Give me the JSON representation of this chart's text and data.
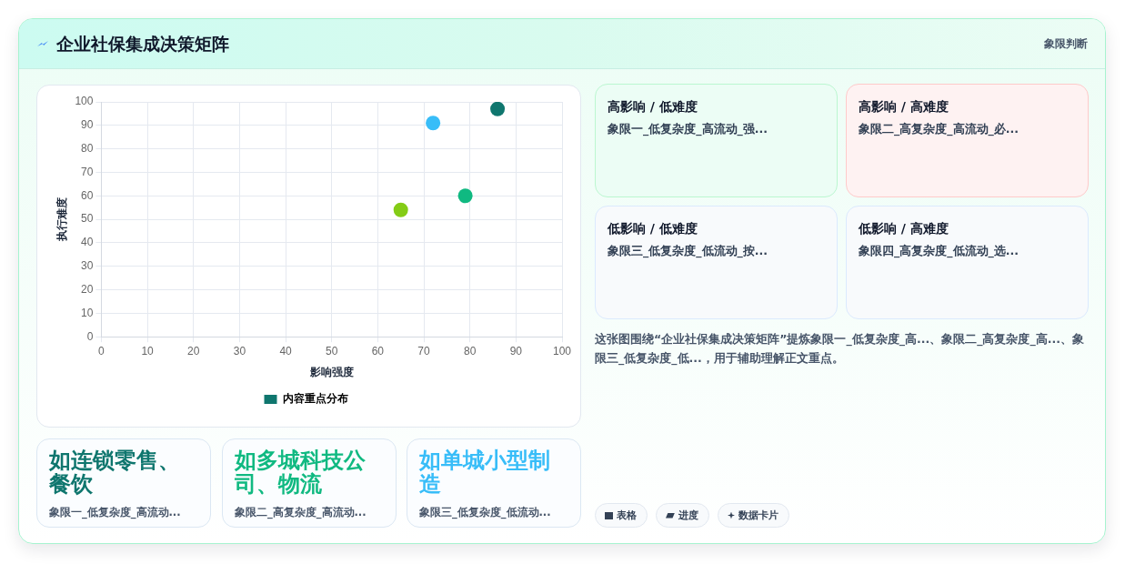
{
  "chart_data": [
    {
      "type": "other",
      "title": "企业社保集成决策矩阵",
      "subtitle": "象限判断"
    },
    {
      "type": "scatter",
      "xlabel": "影响强度",
      "ylabel": "执行难度",
      "xlim": [
        0,
        100
      ],
      "ylim": [
        0,
        100
      ],
      "xticks": [
        0,
        10,
        20,
        30,
        40,
        50,
        60,
        70,
        80,
        90,
        100
      ],
      "yticks": [
        0,
        10,
        20,
        30,
        40,
        50,
        60,
        70,
        80,
        90,
        100
      ],
      "grid": true,
      "legend": "bottom",
      "marker": "circle",
      "series": [
        {
          "name": "内容重点分布",
          "color": "#0f766e",
          "colors": [
            "#0f766e",
            "#10b981",
            "#38bdf8",
            "#84cc16"
          ],
          "x": [
            86,
            79,
            72,
            65
          ],
          "values": [
            97,
            60,
            91,
            54
          ]
        }
      ]
    },
    {
      "type": "other",
      "title": "高影响 / 低难度",
      "subtitle": "象限一_低复杂度_高流动_强..."
    },
    {
      "type": "other",
      "title": "高影响 / 高难度",
      "subtitle": "象限二_高复杂度_高流动_必..."
    },
    {
      "type": "other",
      "title": "低影响 / 低难度",
      "subtitle": "象限三_低复杂度_低流动_按..."
    },
    {
      "type": "other",
      "title": "低影响 / 高难度",
      "subtitle": "象限四_高复杂度_低流动_选..."
    },
    {
      "type": "other",
      "annotations": [
        "这张图围绕“企业社保集成决策矩阵”提炼象限一_低复杂度_高...、象限二_高复杂度_高...、象限三_低复杂度_低...，用于辅助理解正文重点。"
      ]
    },
    {
      "type": "other",
      "title": "如连锁零售、餐饮",
      "subtitle": "象限一_低复杂度_高流动...",
      "color": "#0f766e"
    },
    {
      "type": "other",
      "title": "如多城科技公司、物流",
      "subtitle": "象限二_高复杂度_高流动...",
      "color": "#10b981"
    },
    {
      "type": "other",
      "title": "如单城小型制造",
      "subtitle": "象限三_低复杂度_低流动...",
      "color": "#38bdf8"
    },
    {
      "type": "other",
      "annotations": [
        "表格",
        "进度",
        "数据卡片"
      ]
    }
  ]
}
